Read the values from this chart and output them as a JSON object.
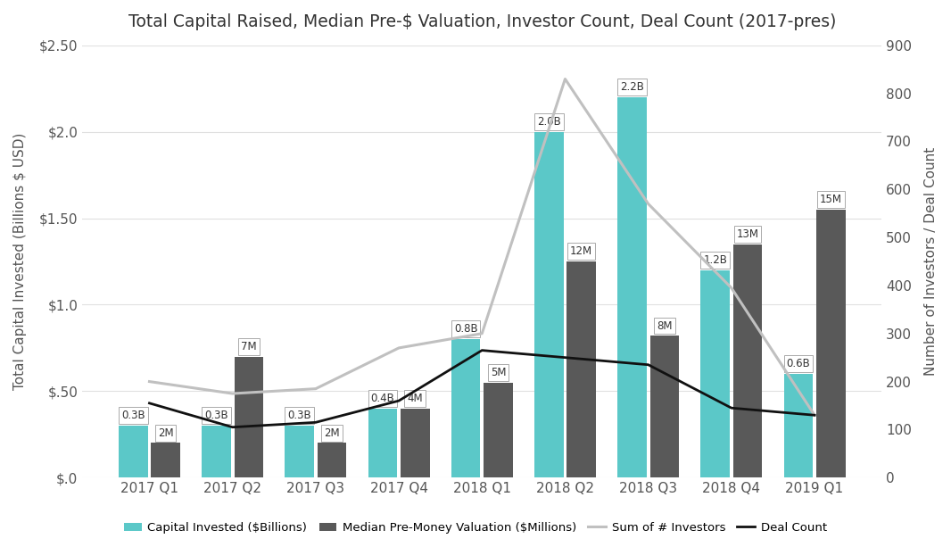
{
  "title": "Total Capital Raised, Median Pre-$ Valuation, Investor Count, Deal Count (2017-pres)",
  "categories": [
    "2017 Q1",
    "2017 Q2",
    "2017 Q3",
    "2017 Q4",
    "2018 Q1",
    "2018 Q2",
    "2018 Q3",
    "2018 Q4",
    "2019 Q1"
  ],
  "capital_invested": [
    0.3,
    0.3,
    0.3,
    0.4,
    0.8,
    2.0,
    2.2,
    1.2,
    0.6
  ],
  "capital_labels": [
    "0.3B",
    "0.3B",
    "0.3B",
    "0.4B",
    "0.8B",
    "2.0B",
    "2.2B",
    "1.2B",
    "0.6B"
  ],
  "median_valuation_display": [
    0.2,
    0.7,
    0.2,
    0.4,
    0.55,
    1.25,
    0.82,
    1.35,
    1.55
  ],
  "median_labels": [
    "2M",
    "7M",
    "2M",
    "4M",
    "5M",
    "12M",
    "8M",
    "13M",
    "15M"
  ],
  "num_investors": [
    200,
    175,
    185,
    270,
    300,
    830,
    570,
    395,
    130
  ],
  "deal_count": [
    155,
    105,
    115,
    160,
    265,
    250,
    235,
    145,
    130
  ],
  "capital_color": "#5bc8c8",
  "valuation_color": "#595959",
  "investors_color": "#c0c0c0",
  "deal_color": "#111111",
  "ylabel_left": "Total Capital Invested (Billions $ USD)",
  "ylabel_right": "Number of Investors / Deal Count",
  "ylim_left": [
    0,
    2.5
  ],
  "ylim_right": [
    0,
    900
  ],
  "yticks_left": [
    0,
    0.5,
    1.0,
    1.5,
    2.0,
    2.5
  ],
  "ytick_labels_left": [
    "$.0",
    "$.50",
    "$1.0",
    "$1.50",
    "$2.0",
    "$2.50"
  ],
  "yticks_right": [
    0,
    100,
    200,
    300,
    400,
    500,
    600,
    700,
    800,
    900
  ],
  "background_color": "#ffffff",
  "legend_labels": [
    "Capital Invested ($Billions)",
    "Median Pre-Money Valuation ($Millions)",
    "Sum of # Investors",
    "Deal Count"
  ]
}
